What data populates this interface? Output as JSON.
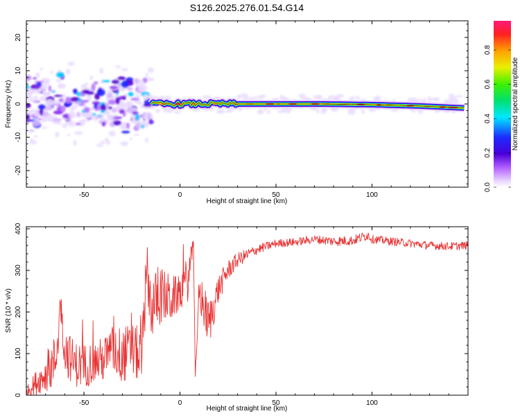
{
  "figure": {
    "title": "S126.2025.276.01.54.G14"
  },
  "chart_data": [
    {
      "type": "heatmap",
      "xlabel": "Height of straight line (km)",
      "ylabel": "Frequency (Hz)",
      "xlim": [
        -80,
        150
      ],
      "ylim": [
        -25,
        25
      ],
      "x_ticks": [
        -50,
        0,
        50,
        100
      ],
      "x_tick_labels": [
        "-50",
        "0",
        "50",
        "100"
      ],
      "y_ticks": [
        -20,
        -10,
        0,
        10,
        20
      ],
      "y_tick_labels": [
        "-20",
        "-10",
        "0",
        "10",
        "20"
      ],
      "colorbar": {
        "label": "Normalized spectral amplitude",
        "range": [
          0,
          0.97
        ],
        "ticks": [
          0.0,
          0.2,
          0.4,
          0.6,
          0.8
        ],
        "tick_labels": [
          "0.0",
          "0.2",
          "0.4",
          "0.6",
          "0.8"
        ]
      },
      "trace": {
        "x": [
          -15,
          0,
          25,
          50,
          75,
          100,
          125,
          148
        ],
        "frequency": [
          0,
          0,
          0,
          0,
          0,
          -0.2,
          -0.6,
          -1.2
        ]
      },
      "noise_region": {
        "x_range": [
          -80,
          -15
        ],
        "frequency_spread": 9
      }
    },
    {
      "type": "line",
      "xlabel": "Height of straight line (km)",
      "ylabel": "SNR (10 * v/v)",
      "xlim": [
        -80,
        150
      ],
      "ylim": [
        0,
        405
      ],
      "x_ticks": [
        -50,
        0,
        50,
        100
      ],
      "x_tick_labels": [
        "-50",
        "0",
        "50",
        "100"
      ],
      "y_ticks": [
        0,
        100,
        200,
        300,
        400
      ],
      "y_tick_labels": [
        "0",
        "100",
        "200",
        "300",
        "400"
      ],
      "series": [
        {
          "color": "#e83232",
          "x": [
            -80,
            -75,
            -70,
            -65,
            -62,
            -60,
            -55,
            -50,
            -45,
            -40,
            -35,
            -30,
            -25,
            -20,
            -17,
            -15,
            -10,
            -5,
            0,
            5,
            7,
            8,
            10,
            15,
            20,
            25,
            30,
            40,
            50,
            60,
            70,
            80,
            90,
            98,
            100,
            110,
            120,
            130,
            140,
            150
          ],
          "y": [
            8,
            30,
            50,
            80,
            210,
            110,
            75,
            70,
            80,
            85,
            110,
            95,
            110,
            90,
            300,
            210,
            240,
            230,
            245,
            290,
            370,
            45,
            250,
            170,
            255,
            300,
            325,
            350,
            365,
            368,
            375,
            370,
            372,
            385,
            375,
            370,
            365,
            360,
            358,
            360
          ],
          "noise": [
            10,
            30,
            40,
            70,
            40,
            60,
            55,
            55,
            50,
            55,
            60,
            70,
            65,
            70,
            60,
            80,
            70,
            60,
            40,
            60,
            0,
            0,
            50,
            60,
            35,
            25,
            18,
            12,
            10,
            10,
            10,
            12,
            12,
            12,
            10,
            10,
            10,
            10,
            10,
            10
          ]
        }
      ]
    }
  ]
}
